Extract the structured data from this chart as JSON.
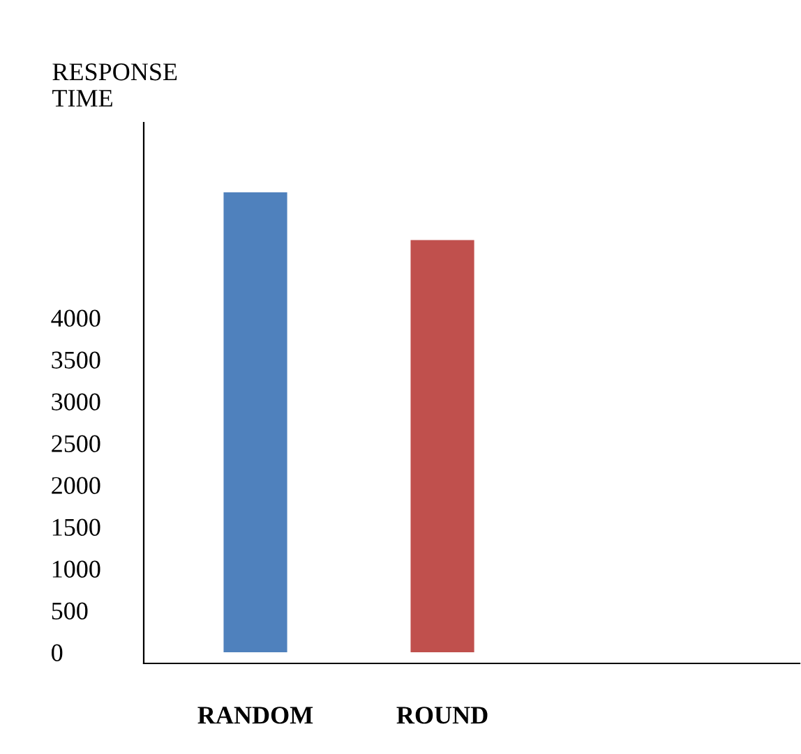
{
  "chart_data": {
    "type": "bar",
    "ylabel": "RESPONSE\nTIME",
    "categories": [
      "RANDOM",
      "ROUND"
    ],
    "values": [
      5500,
      4930
    ],
    "colors": [
      "#4f81bd",
      "#c0504d"
    ],
    "ylim": [
      -133,
      6333
    ],
    "yticks": [
      0,
      500,
      1000,
      1500,
      2000,
      2500,
      3000,
      3500,
      4000
    ],
    "grid": false,
    "legend": false
  }
}
